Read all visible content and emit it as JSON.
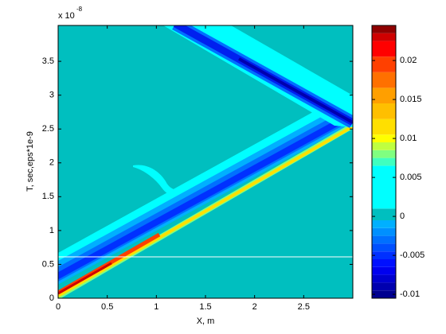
{
  "chart_data": {
    "type": "contour",
    "x_label": "X, m",
    "y_label": "T, sec,eps*1e-9",
    "xlim": [
      0,
      3
    ],
    "ylim": [
      0,
      4.03
    ],
    "xticks": [
      0,
      0.5,
      1,
      1.5,
      2,
      2.5
    ],
    "yticks": [
      0,
      0.5,
      1,
      1.5,
      2,
      2.5,
      3,
      3.5
    ],
    "y_exponent": {
      "base": "x 10",
      "power": "-8"
    },
    "colorbar": {
      "lim": [
        -0.0105,
        0.0245
      ],
      "ticks": [
        -0.01,
        -0.005,
        0,
        0.005,
        0.01,
        0.015,
        0.02
      ],
      "bands": [
        {
          "from": -0.0105,
          "to": -0.0095,
          "color": "#00008f"
        },
        {
          "from": -0.0095,
          "to": -0.0085,
          "color": "#0000af"
        },
        {
          "from": -0.0085,
          "to": -0.0075,
          "color": "#0000cf"
        },
        {
          "from": -0.0075,
          "to": -0.0065,
          "color": "#0000ef"
        },
        {
          "from": -0.0065,
          "to": -0.0055,
          "color": "#0010ff"
        },
        {
          "from": -0.0055,
          "to": -0.0045,
          "color": "#0030ff"
        },
        {
          "from": -0.0045,
          "to": -0.0035,
          "color": "#0050ff"
        },
        {
          "from": -0.0035,
          "to": -0.0025,
          "color": "#0070ff"
        },
        {
          "from": -0.0025,
          "to": -0.0015,
          "color": "#0090ff"
        },
        {
          "from": -0.0015,
          "to": -0.0005,
          "color": "#00b0ff"
        },
        {
          "from": -0.0005,
          "to": 0.001,
          "color": "#00bfbf"
        },
        {
          "from": 0.001,
          "to": 0.0065,
          "color": "#00ffff"
        },
        {
          "from": 0.0065,
          "to": 0.0075,
          "color": "#40ffbf"
        },
        {
          "from": 0.0075,
          "to": 0.0085,
          "color": "#80ff80"
        },
        {
          "from": 0.0085,
          "to": 0.0095,
          "color": "#bfff40"
        },
        {
          "from": 0.0095,
          "to": 0.0105,
          "color": "#ffff00"
        },
        {
          "from": 0.0105,
          "to": 0.0125,
          "color": "#ffdf00"
        },
        {
          "from": 0.0125,
          "to": 0.0145,
          "color": "#ffbf00"
        },
        {
          "from": 0.0145,
          "to": 0.0165,
          "color": "#ff9f00"
        },
        {
          "from": 0.0165,
          "to": 0.0185,
          "color": "#ff7000"
        },
        {
          "from": 0.0185,
          "to": 0.0205,
          "color": "#ff4000"
        },
        {
          "from": 0.0205,
          "to": 0.0225,
          "color": "#ff0000"
        },
        {
          "from": 0.0225,
          "to": 0.0235,
          "color": "#cf0000"
        },
        {
          "from": 0.0235,
          "to": 0.0245,
          "color": "#8f0000"
        }
      ]
    }
  }
}
